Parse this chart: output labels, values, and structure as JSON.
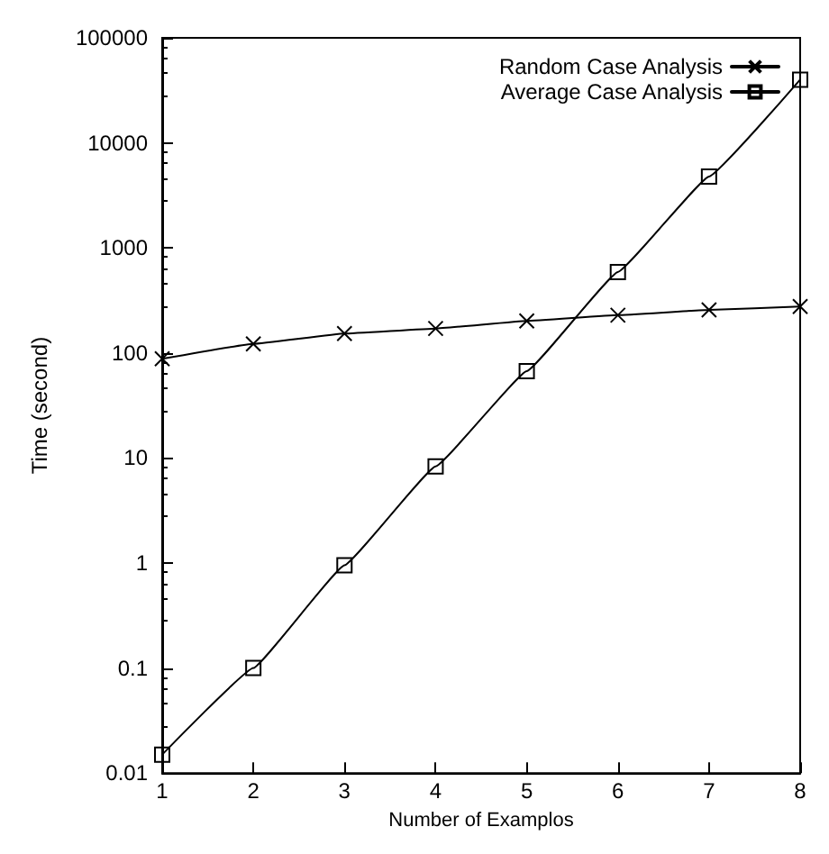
{
  "chart_data": {
    "type": "line",
    "xlabel": "Number of Examplos",
    "ylabel": "Time (second)",
    "x": [
      1,
      2,
      3,
      4,
      5,
      6,
      7,
      8
    ],
    "series": [
      {
        "name": "Random Case Analysis",
        "color": "#000000",
        "marker": "cross",
        "values": [
          88,
          122,
          153,
          171,
          202,
          229,
          257,
          277
        ]
      },
      {
        "name": "Average Case Analysis",
        "color": "#000000",
        "marker": "square",
        "values": [
          0.015,
          0.1,
          0.95,
          8.3,
          67,
          590,
          4780,
          40000
        ]
      }
    ],
    "xlim": [
      1,
      8
    ],
    "xticks": [
      1,
      2,
      3,
      4,
      5,
      6,
      7,
      8
    ],
    "ylim": [
      0.01,
      100000
    ],
    "yticks": [
      0.01,
      0.1,
      1,
      10,
      100,
      1000,
      10000,
      100000
    ],
    "log": "y",
    "grid": false,
    "legend": "top right",
    "line_style": "solid"
  }
}
